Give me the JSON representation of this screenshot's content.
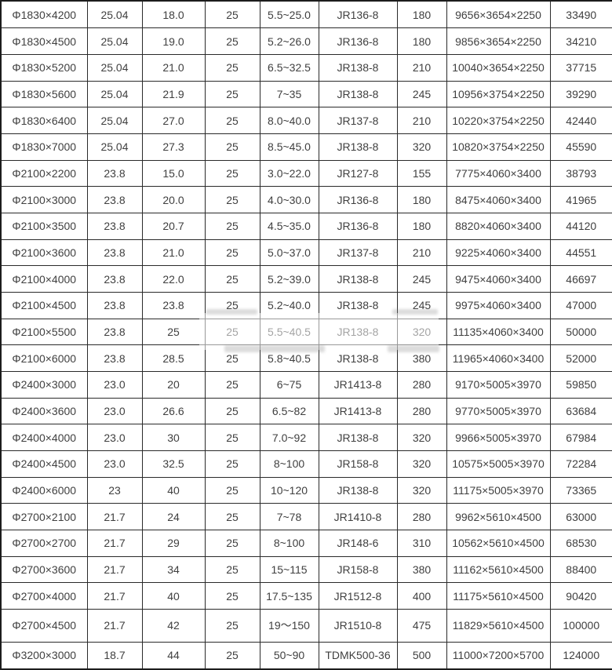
{
  "style": {
    "text_color": "#3f3f3f",
    "border_color": "#2a2a2a",
    "background_color": "#ffffff"
  },
  "chart_data": {
    "type": "table",
    "header_visible": false,
    "rows": [
      [
        "Φ1830×4200",
        "25.04",
        "18.0",
        "25",
        "5.5~25.0",
        "JR136-8",
        "180",
        "9656×3654×2250",
        "33490"
      ],
      [
        "Φ1830×4500",
        "25.04",
        "19.0",
        "25",
        "5.2~26.0",
        "JR136-8",
        "180",
        "9856×3654×2250",
        "34210"
      ],
      [
        "Φ1830×5200",
        "25.04",
        "21.0",
        "25",
        "6.5~32.5",
        "JR138-8",
        "210",
        "10040×3654×2250",
        "37715"
      ],
      [
        "Φ1830×5600",
        "25.04",
        "21.9",
        "25",
        "7~35",
        "JR138-8",
        "245",
        "10956×3754×2250",
        "39290"
      ],
      [
        "Φ1830×6400",
        "25.04",
        "27.0",
        "25",
        "8.0~40.0",
        "JR137-8",
        "210",
        "10220×3754×2250",
        "42440"
      ],
      [
        "Φ1830×7000",
        "25.04",
        "27.3",
        "25",
        "8.5~45.0",
        "JR138-8",
        "320",
        "10820×3754×2250",
        "45590"
      ],
      [
        "Φ2100×2200",
        "23.8",
        "15.0",
        "25",
        "3.0~22.0",
        "JR127-8",
        "155",
        "7775×4060×3400",
        "38793"
      ],
      [
        "Φ2100×3000",
        "23.8",
        "20.0",
        "25",
        "4.0~30.0",
        "JR136-8",
        "180",
        "8475×4060×3400",
        "41965"
      ],
      [
        "Φ2100×3500",
        "23.8",
        "20.7",
        "25",
        "4.5~35.0",
        "JR136-8",
        "180",
        "8820×4060×3400",
        "44120"
      ],
      [
        "Φ2100×3600",
        "23.8",
        "21.0",
        "25",
        "5.0~37.0",
        "JR137-8",
        "210",
        "9225×4060×3400",
        "44551"
      ],
      [
        "Φ2100×4000",
        "23.8",
        "22.0",
        "25",
        "5.2~39.0",
        "JR138-8",
        "245",
        "9475×4060×3400",
        "46697"
      ],
      [
        "Φ2100×4500",
        "23.8",
        "23.8",
        "25",
        "5.2~40.0",
        "JR138-8",
        "245",
        "9975×4060×3400",
        "47000"
      ],
      [
        "Φ2100×5500",
        "23.8",
        "25",
        "25",
        "5.5~40.5",
        "JR138-8",
        "320",
        "11135×4060×3400",
        "50000"
      ],
      [
        "Φ2100×6000",
        "23.8",
        "28.5",
        "25",
        "5.8~40.5",
        "JR138-8",
        "380",
        "11965×4060×3400",
        "52000"
      ],
      [
        "Φ2400×3000",
        "23.0",
        "20",
        "25",
        "6~75",
        "JR1413-8",
        "280",
        "9170×5005×3970",
        "59850"
      ],
      [
        "Φ2400×3600",
        "23.0",
        "26.6",
        "25",
        "6.5~82",
        "JR1413-8",
        "280",
        "9770×5005×3970",
        "63684"
      ],
      [
        "Φ2400×4000",
        "23.0",
        "30",
        "25",
        "7.0~92",
        "JR138-8",
        "320",
        "9966×5005×3970",
        "67984"
      ],
      [
        "Φ2400×4500",
        "23.0",
        "32.5",
        "25",
        "8~100",
        "JR158-8",
        "320",
        "10575×5005×3970",
        "72284"
      ],
      [
        "Φ2400×6000",
        "23",
        "40",
        "25",
        "10~120",
        "JR138-8",
        "320",
        "11175×5005×3970",
        "73365"
      ],
      [
        "Φ2700×2100",
        "21.7",
        "24",
        "25",
        "7~78",
        "JR1410-8",
        "280",
        "9962×5610×4500",
        "63000"
      ],
      [
        "Φ2700×2700",
        "21.7",
        "29",
        "25",
        "8~100",
        "JR148-6",
        "310",
        "10562×5610×4500",
        "68530"
      ],
      [
        "Φ2700×3600",
        "21.7",
        "34",
        "25",
        "15~115",
        "JR158-8",
        "380",
        "11162×5610×4500",
        "88400"
      ],
      [
        "Φ2700×4000",
        "21.7",
        "40",
        "25",
        "17.5~135",
        "JR1512-8",
        "400",
        "11175×5610×4500",
        "90420"
      ],
      [
        "Φ2700×4500",
        "21.7",
        "42",
        "25",
        "19～150",
        "JR1510-8",
        "475",
        "11829×5610×4500",
        "100000"
      ],
      [
        "Φ3200×3000",
        "18.7",
        "44",
        "25",
        "50~90",
        "TDMK500-36",
        "500",
        "11000×7200×5700",
        "124000"
      ]
    ]
  }
}
